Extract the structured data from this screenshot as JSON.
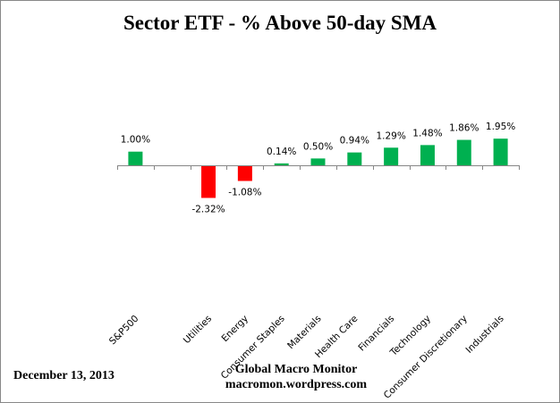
{
  "chart_data": {
    "type": "bar",
    "title": "Sector ETF - % Above 50-day SMA",
    "categories": [
      "S&P500",
      "",
      "Utilities",
      "Energy",
      "Consumer Staples",
      "Materials",
      "Health Care",
      "Financials",
      "Technology",
      "Consumer Discretionary",
      "Industrials"
    ],
    "values": [
      1.0,
      null,
      -2.32,
      -1.08,
      0.14,
      0.5,
      0.94,
      1.29,
      1.48,
      1.86,
      1.95
    ],
    "data_labels": [
      "1.00%",
      "",
      "-2.32%",
      "-1.08%",
      "0.14%",
      "0.50%",
      "0.94%",
      "1.29%",
      "1.48%",
      "1.86%",
      "1.95%"
    ],
    "xlabel": "",
    "ylabel": "",
    "grid": false,
    "colors": {
      "positive": "#00b050",
      "negative": "#ff0000"
    }
  },
  "footer": {
    "date": "December 13, 2013",
    "source_line1": "Global Macro Monitor",
    "source_line2": "macromon.wordpress.com"
  }
}
